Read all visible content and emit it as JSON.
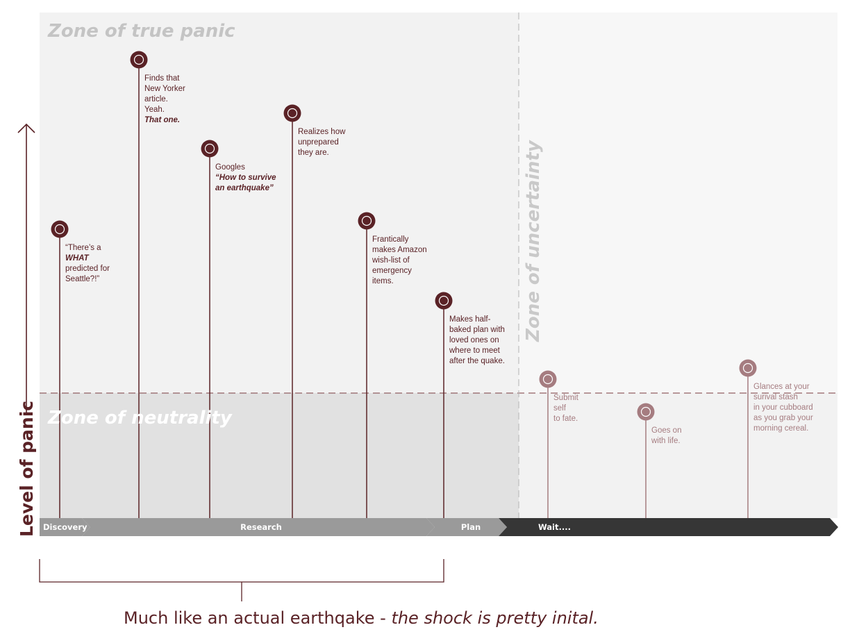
{
  "zones": {
    "panic": "Zone of true panic",
    "neutrality": "Zone of neutrality",
    "uncertainty": "Zone of uncertainty"
  },
  "axis": {
    "y_label": "Level of panic"
  },
  "stages": [
    {
      "label": "Discovery"
    },
    {
      "label": "Research"
    },
    {
      "label": "Plan"
    },
    {
      "label": "Wait...."
    }
  ],
  "events": [
    {
      "lines": [
        {
          "t": "“There’s a"
        },
        {
          "t": "WHAT",
          "em": true
        },
        {
          "t": "predicted for"
        },
        {
          "t": "Seattle?!”"
        }
      ],
      "muted": false
    },
    {
      "lines": [
        {
          "t": "Finds that"
        },
        {
          "t": "New Yorker"
        },
        {
          "t": "article."
        },
        {
          "t": "Yeah."
        },
        {
          "t": "That one.",
          "em": true
        }
      ],
      "muted": false
    },
    {
      "lines": [
        {
          "t": "Googles"
        },
        {
          "t": "“How to survive",
          "em": true
        },
        {
          "t": "an earthquake”",
          "em": true
        }
      ],
      "muted": false
    },
    {
      "lines": [
        {
          "t": "Realizes how"
        },
        {
          "t": "unprepared"
        },
        {
          "t": "they are."
        }
      ],
      "muted": false
    },
    {
      "lines": [
        {
          "t": "Frantically"
        },
        {
          "t": "makes Amazon"
        },
        {
          "t": "wish-list of"
        },
        {
          "t": "emergency"
        },
        {
          "t": "items."
        }
      ],
      "muted": false
    },
    {
      "lines": [
        {
          "t": "Makes half-"
        },
        {
          "t": "baked plan with"
        },
        {
          "t": "loved ones on"
        },
        {
          "t": "where to meet"
        },
        {
          "t": "after the quake."
        }
      ],
      "muted": false
    },
    {
      "lines": [
        {
          "t": "Submit"
        },
        {
          "t": "self"
        },
        {
          "t": "to fate."
        }
      ],
      "muted": true
    },
    {
      "lines": [
        {
          "t": "Goes on"
        },
        {
          "t": "with life."
        }
      ],
      "muted": true
    },
    {
      "lines": [
        {
          "t": "Glances at your"
        },
        {
          "t": "surival stash"
        },
        {
          "t": "in your cubboard"
        },
        {
          "t": "as you grab your"
        },
        {
          "t": "morning cereal."
        }
      ],
      "muted": true
    }
  ],
  "caption": {
    "plain": "Much like an actual earthqake - ",
    "italic": "the shock is pretty inital."
  },
  "colors": {
    "primary": "#5a2226",
    "muted": "#a57c80",
    "panic_bg": "#f2f2f2",
    "neutral_bg": "#e1e1e1",
    "uncertain_bg": "#f7f7f7",
    "uncertain_low_bg": "#f2f2f2",
    "stage_light": "#9a9a9a",
    "stage_dark": "#363636"
  }
}
